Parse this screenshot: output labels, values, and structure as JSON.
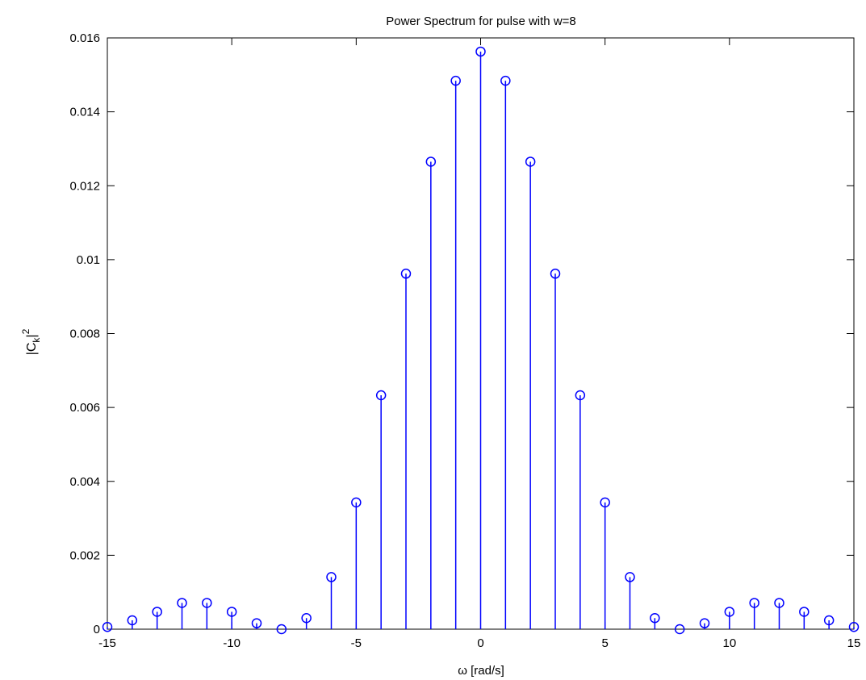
{
  "chart_data": {
    "type": "stem",
    "title": "Power Spectrum for pulse with w=8",
    "xlabel": "ω [rad/s]",
    "ylabel": {
      "base": "|C",
      "subscript": "k",
      "suffix": "|",
      "superscript": "2"
    },
    "xlim": [
      -15,
      15
    ],
    "ylim": [
      0,
      0.016
    ],
    "xticks": [
      -15,
      -10,
      -5,
      0,
      5,
      10,
      15
    ],
    "yticks": [
      0,
      0.002,
      0.004,
      0.006,
      0.008,
      0.01,
      0.012,
      0.014,
      0.016
    ],
    "xtick_labels": [
      "-15",
      "-10",
      "-5",
      "0",
      "5",
      "10",
      "15"
    ],
    "ytick_labels": [
      "0",
      "0.002",
      "0.004",
      "0.006",
      "0.008",
      "0.01",
      "0.012",
      "0.014",
      "0.016"
    ],
    "grid": false,
    "marker": "circle",
    "color": "#0000ff",
    "x": [
      -15,
      -14,
      -13,
      -12,
      -11,
      -10,
      -9,
      -8,
      -7,
      -6,
      -5,
      -4,
      -3,
      -2,
      -1,
      0,
      1,
      2,
      3,
      4,
      5,
      6,
      7,
      8,
      9,
      10,
      11,
      12,
      13,
      14,
      15
    ],
    "y": [
      6e-05,
      0.00024,
      0.00047,
      0.00071,
      0.00071,
      0.00047,
      0.00016,
      0,
      0.0003,
      0.00141,
      0.00343,
      0.00633,
      0.00962,
      0.01265,
      0.01484,
      0.01563,
      0.01484,
      0.01265,
      0.00962,
      0.00633,
      0.00343,
      0.00141,
      0.0003,
      0,
      0.00016,
      0.00047,
      0.00071,
      0.00071,
      0.00047,
      0.00024,
      6e-05
    ]
  }
}
